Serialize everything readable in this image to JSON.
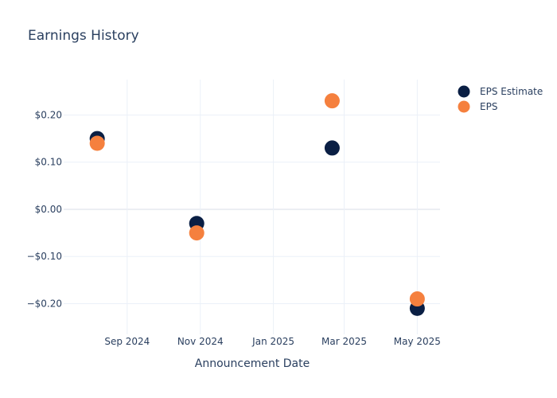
{
  "chart_data": {
    "type": "scatter",
    "title": "Earnings History",
    "xlabel": "Announcement Date",
    "ylabel": "",
    "x_ticks": [
      {
        "date": "2024-09-01",
        "label": "Sep 2024"
      },
      {
        "date": "2024-11-01",
        "label": "Nov 2024"
      },
      {
        "date": "2025-01-01",
        "label": "Jan 2025"
      },
      {
        "date": "2025-03-01",
        "label": "Mar 2025"
      },
      {
        "date": "2025-05-01",
        "label": "May 2025"
      }
    ],
    "xlim": [
      "2024-07-10",
      "2025-05-20"
    ],
    "y_ticks": [
      {
        "value": 0.2,
        "label": "$0.20"
      },
      {
        "value": 0.1,
        "label": "$0.10"
      },
      {
        "value": 0.0,
        "label": "$0.00"
      },
      {
        "value": -0.1,
        "label": "−$0.10"
      },
      {
        "value": -0.2,
        "label": "−$0.20"
      }
    ],
    "ylim": [
      -0.265,
      0.275
    ],
    "grid": true,
    "legend_position": "top-right",
    "series": [
      {
        "name": "EPS Estimate",
        "color": "#0a1f44",
        "points": [
          {
            "x": "2024-08-07",
            "y": 0.15
          },
          {
            "x": "2024-10-29",
            "y": -0.03
          },
          {
            "x": "2025-02-19",
            "y": 0.13
          },
          {
            "x": "2025-05-01",
            "y": -0.21
          }
        ]
      },
      {
        "name": "EPS",
        "color": "#f5803e",
        "points": [
          {
            "x": "2024-08-07",
            "y": 0.14
          },
          {
            "x": "2024-10-29",
            "y": -0.05
          },
          {
            "x": "2025-02-19",
            "y": 0.23
          },
          {
            "x": "2025-05-01",
            "y": -0.19
          }
        ]
      }
    ]
  }
}
